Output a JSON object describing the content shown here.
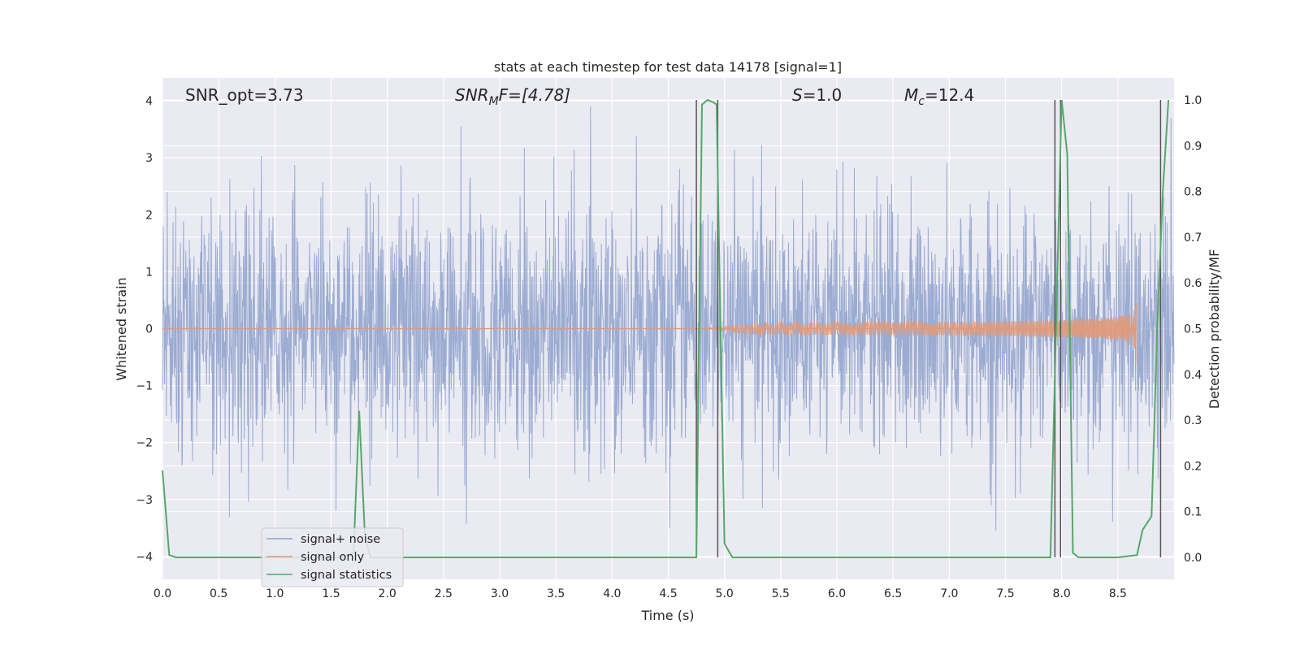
{
  "chart_data": {
    "type": "line",
    "title": "stats at each timestep for test data 14178 [signal=1]",
    "xlabel": "Time (s)",
    "ylabel": "Whitened strain",
    "ylabel_right": "Detection probability/MF",
    "xlim": [
      0,
      9.0
    ],
    "ylim": [
      -4.4,
      4.4
    ],
    "ylim_right": [
      -0.048,
      1.048
    ],
    "xticks": [
      "0.0",
      "0.5",
      "1.0",
      "1.5",
      "2.0",
      "2.5",
      "3.0",
      "3.5",
      "4.0",
      "4.5",
      "5.0",
      "5.5",
      "6.0",
      "6.5",
      "7.0",
      "7.5",
      "8.0",
      "8.5"
    ],
    "yticks_left": [
      "4",
      "3",
      "2",
      "1",
      "0",
      "−1",
      "−2",
      "−3",
      "−4"
    ],
    "yticks_right": [
      "1.0",
      "0.9",
      "0.8",
      "0.7",
      "0.6",
      "0.5",
      "0.4",
      "0.3",
      "0.2",
      "0.1",
      "0.0"
    ],
    "grid": true,
    "legend_position": "lower-left",
    "annotations": {
      "snr_opt": "SNR_opt=3.73",
      "snr_mf_base": "SNR",
      "snr_mf_sub": "M",
      "snr_mf_rest": "F=[4.78]",
      "s_var": "S",
      "s_val": "=1.0",
      "mc_var": "M",
      "mc_sub": "c",
      "mc_val": "=12.4"
    },
    "series": [
      {
        "name": "signal+ noise",
        "color": "#8da0cb",
        "kind": "noise",
        "amplitude_envelope": 1.0,
        "x_range": [
          0,
          9.0
        ]
      },
      {
        "name": "signal only",
        "color": "#e09a7a",
        "kind": "chirp",
        "x_range": [
          4.8,
          8.67
        ],
        "peak_amplitude": 0.65
      },
      {
        "name": "signal statistics",
        "color": "#55a868",
        "axis": "right",
        "x": [
          0.0,
          0.06,
          0.12,
          0.5,
          1.0,
          1.5,
          1.6,
          1.7,
          1.75,
          1.8,
          1.85,
          1.9,
          2.5,
          3.0,
          3.5,
          4.0,
          4.5,
          4.75,
          4.8,
          4.85,
          4.9,
          4.93,
          4.95,
          5.0,
          5.07,
          5.5,
          6.0,
          6.5,
          7.0,
          7.5,
          7.9,
          7.95,
          8.0,
          8.05,
          8.1,
          8.15,
          8.5,
          8.67,
          8.72,
          8.8,
          8.85,
          8.9,
          8.95
        ],
        "values": [
          0.19,
          0.005,
          0.0,
          0.0,
          0.0,
          0.0,
          0.0,
          0.01,
          0.32,
          0.05,
          0.0,
          0.0,
          0.0,
          0.0,
          0.0,
          0.0,
          0.0,
          0.0,
          0.99,
          1.0,
          0.995,
          0.99,
          0.7,
          0.03,
          0.0,
          0.0,
          0.0,
          0.0,
          0.0,
          0.0,
          0.0,
          0.5,
          1.0,
          0.88,
          0.01,
          0.0,
          0.0,
          0.005,
          0.06,
          0.09,
          0.5,
          0.8,
          1.0
        ]
      }
    ],
    "vertical_markers": [
      4.75,
      4.94,
      7.94,
      7.99,
      8.88
    ]
  }
}
